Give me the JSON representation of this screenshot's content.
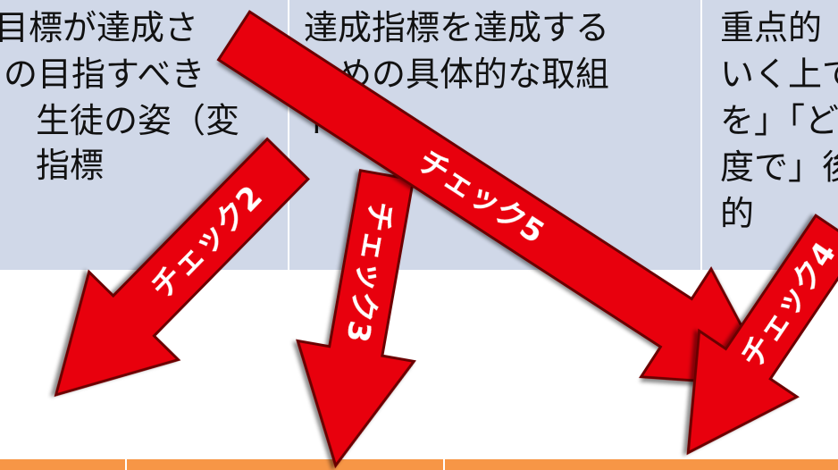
{
  "cells": [
    {
      "lines": [
        "目標が達成さ",
        "の目指すべき",
        "生徒の姿（変",
        "指標"
      ]
    },
    {
      "lines": [
        "達成指標を達成する",
        "ための具体的な取組",
        "ト"
      ]
    },
    {
      "lines": [
        "重点的",
        "いく上で",
        "を」「ど",
        "度で」後",
        "的"
      ]
    }
  ],
  "arrows": [
    {
      "label": "チェック2"
    },
    {
      "label": "チェック3"
    },
    {
      "label": "チェック5"
    },
    {
      "label": "チェック4"
    }
  ],
  "colors": {
    "header_bg": "#d0d8e8",
    "footer_bg": "#f79646",
    "arrow_fill": "#e8000b",
    "arrow_stroke": "#6b0000",
    "arrow_text": "#ffffff"
  }
}
